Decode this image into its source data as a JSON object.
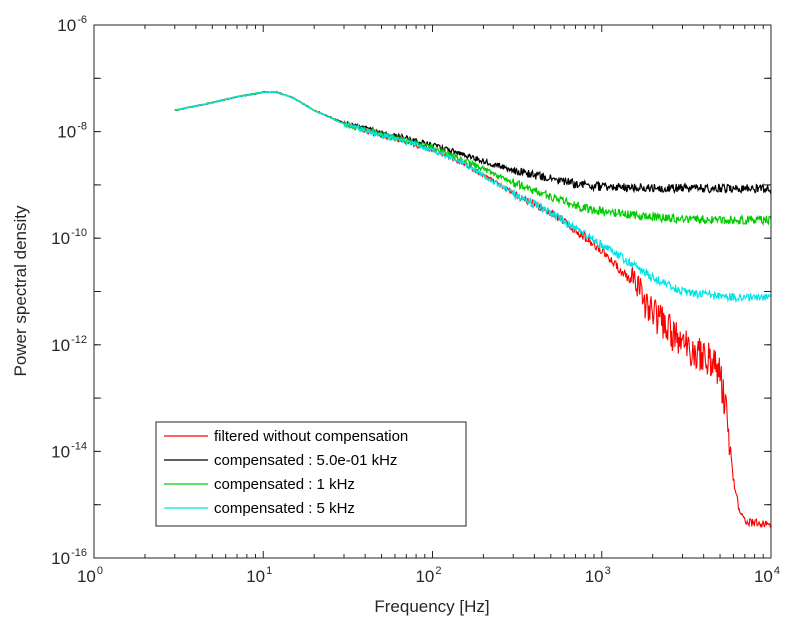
{
  "chart_data": {
    "type": "line",
    "title": "",
    "xlabel": "Frequency [Hz]",
    "ylabel": "Power spectral density",
    "xscale": "log",
    "yscale": "log",
    "xlim": [
      1,
      10000
    ],
    "ylim": [
      1e-16,
      1e-06
    ],
    "grid": false,
    "legend_position": "bottom-left",
    "x_ticks": [
      {
        "base": "10",
        "exp": "0",
        "value": 1
      },
      {
        "base": "10",
        "exp": "1",
        "value": 10
      },
      {
        "base": "10",
        "exp": "2",
        "value": 100
      },
      {
        "base": "10",
        "exp": "3",
        "value": 1000
      },
      {
        "base": "10",
        "exp": "4",
        "value": 10000
      }
    ],
    "y_ticks": [
      {
        "base": "10",
        "exp": "-6",
        "value": 1e-06
      },
      {
        "base": "10",
        "exp": "-8",
        "value": 1e-08
      },
      {
        "base": "10",
        "exp": "-10",
        "value": 1e-10
      },
      {
        "base": "10",
        "exp": "-12",
        "value": 1e-12
      },
      {
        "base": "10",
        "exp": "-14",
        "value": 1e-14
      },
      {
        "base": "10",
        "exp": "-16",
        "value": 1e-16
      }
    ],
    "series": [
      {
        "name": "filtered without compensation",
        "color": "#ff0000",
        "x": [
          3,
          5,
          7,
          10,
          12,
          15,
          20,
          30,
          50,
          70,
          100,
          150,
          200,
          300,
          500,
          700,
          1000,
          1500,
          2000,
          3000,
          3500,
          4000,
          4500,
          5000,
          5500,
          6000,
          6500,
          7000,
          8000,
          10000
        ],
        "y": [
          2.5e-08,
          3.5e-08,
          4.5e-08,
          5.5e-08,
          5.5e-08,
          4.3e-08,
          2.5e-08,
          1.4e-08,
          8.5e-09,
          6.5e-09,
          4.5e-09,
          2.6e-09,
          1.5e-09,
          7e-10,
          3e-10,
          1.4e-10,
          6e-11,
          1.5e-11,
          4e-12,
          1e-12,
          8e-13,
          6e-13,
          5e-13,
          3e-13,
          4e-14,
          3e-15,
          8e-16,
          5e-16,
          4.5e-16,
          4.3e-16
        ]
      },
      {
        "name": "compensated : 5.0e-01 kHz",
        "color": "#000000",
        "x": [
          3,
          5,
          7,
          10,
          12,
          15,
          20,
          30,
          50,
          70,
          100,
          150,
          200,
          300,
          500,
          700,
          1000,
          2000,
          3000,
          5000,
          10000
        ],
        "y": [
          2.5e-08,
          3.5e-08,
          4.5e-08,
          5.5e-08,
          5.5e-08,
          4.3e-08,
          2.5e-08,
          1.45e-08,
          9.5e-09,
          7.5e-09,
          5.5e-09,
          3.8e-09,
          2.8e-09,
          1.9e-09,
          1.3e-09,
          1.05e-09,
          9.2e-10,
          8.8e-10,
          8.7e-10,
          8.6e-10,
          8.6e-10
        ]
      },
      {
        "name": "compensated : 1 kHz",
        "color": "#00cc00",
        "x": [
          3,
          5,
          7,
          10,
          12,
          15,
          20,
          30,
          50,
          70,
          100,
          150,
          200,
          300,
          500,
          700,
          1000,
          2000,
          3000,
          5000,
          10000
        ],
        "y": [
          2.5e-08,
          3.5e-08,
          4.5e-08,
          5.5e-08,
          5.5e-08,
          4.3e-08,
          2.5e-08,
          1.4e-08,
          9e-09,
          6.8e-09,
          5e-09,
          3e-09,
          2e-09,
          1.1e-09,
          6e-10,
          4e-10,
          3.2e-10,
          2.5e-10,
          2.3e-10,
          2.2e-10,
          2.2e-10
        ]
      },
      {
        "name": "compensated : 5 kHz",
        "color": "#00e6e6",
        "x": [
          3,
          5,
          7,
          10,
          12,
          15,
          20,
          30,
          50,
          70,
          100,
          150,
          200,
          300,
          500,
          700,
          1000,
          1500,
          2000,
          3000,
          5000,
          7000,
          10000
        ],
        "y": [
          2.5e-08,
          3.5e-08,
          4.5e-08,
          5.5e-08,
          5.5e-08,
          4.3e-08,
          2.5e-08,
          1.4e-08,
          8.5e-09,
          6.5e-09,
          4.5e-09,
          2.6e-09,
          1.5e-09,
          7e-10,
          3e-10,
          1.5e-10,
          7.5e-11,
          3.3e-11,
          1.8e-11,
          1e-11,
          8e-12,
          7.8e-12,
          7.8e-12
        ]
      }
    ]
  }
}
